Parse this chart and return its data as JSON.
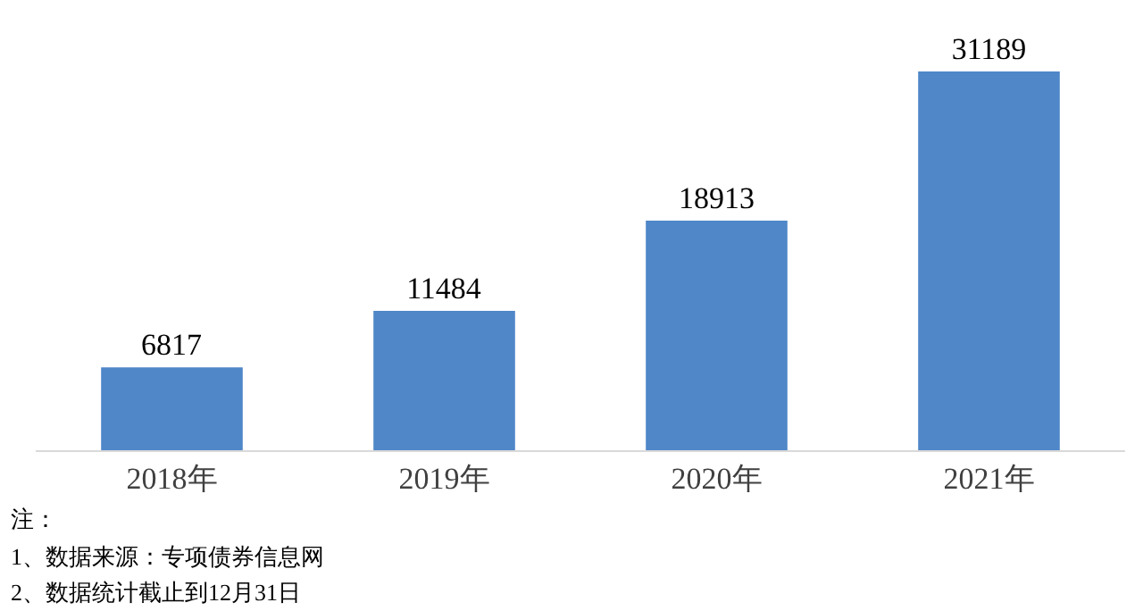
{
  "chart_data": {
    "type": "bar",
    "categories": [
      "2018年",
      "2019年",
      "2020年",
      "2021年"
    ],
    "values": [
      6817,
      11484,
      18913,
      31189
    ],
    "color": "#4f87c8",
    "data_labels": true,
    "tick_labels": "x",
    "annotations": [
      "注：",
      "1、数据来源：专项债券信息网",
      "2、数据统计截止到12月31日"
    ]
  }
}
